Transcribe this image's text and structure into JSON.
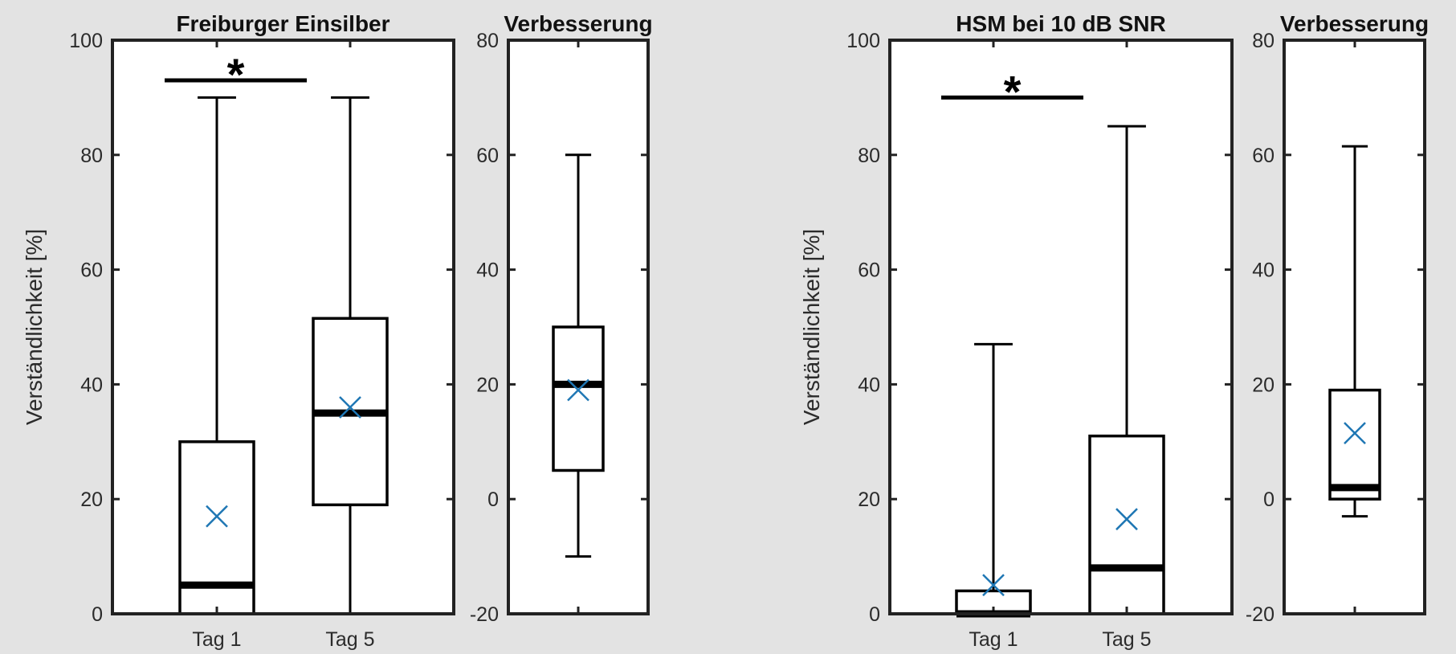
{
  "chart_data": [
    {
      "type": "box",
      "title": "Freiburger Einsilber",
      "ylabel": "Verständlichkeit [%]",
      "ylim": [
        0,
        100
      ],
      "yticks": [
        0,
        20,
        40,
        60,
        80,
        100
      ],
      "categories": [
        "Tag 1",
        "Tag 5"
      ],
      "boxes": [
        {
          "category": "Tag 1",
          "min": 0,
          "q1": 0,
          "median": 5,
          "q3": 30,
          "max": 90,
          "mean": 17
        },
        {
          "category": "Tag 5",
          "min": 0,
          "q1": 19,
          "median": 35,
          "q3": 51.5,
          "max": 90,
          "mean": 36
        }
      ],
      "significance": {
        "between": [
          "Tag 1",
          "Tag 5"
        ],
        "label": "*",
        "y": 93
      }
    },
    {
      "type": "box",
      "title": "Verbesserung",
      "ylim": [
        -20,
        80
      ],
      "yticks": [
        -20,
        0,
        20,
        40,
        60,
        80
      ],
      "categories": [
        ""
      ],
      "boxes": [
        {
          "category": "",
          "min": -10,
          "q1": 5,
          "median": 20,
          "q3": 30,
          "max": 60,
          "mean": 19
        }
      ]
    },
    {
      "type": "box",
      "title": "HSM bei 10 dB SNR",
      "ylabel": "Verständlichkeit [%]",
      "ylim": [
        0,
        100
      ],
      "yticks": [
        0,
        20,
        40,
        60,
        80,
        100
      ],
      "categories": [
        "Tag 1",
        "Tag 5"
      ],
      "boxes": [
        {
          "category": "Tag 1",
          "min": 0,
          "q1": 0,
          "median": 0,
          "q3": 4,
          "max": 47,
          "mean": 5
        },
        {
          "category": "Tag 5",
          "min": 0,
          "q1": 0,
          "median": 8,
          "q3": 31,
          "max": 85,
          "mean": 16.5
        }
      ],
      "significance": {
        "between": [
          "Tag 1",
          "Tag 5"
        ],
        "label": "*",
        "y": 90
      }
    },
    {
      "type": "box",
      "title": "Verbesserung",
      "ylim": [
        -20,
        80
      ],
      "yticks": [
        -20,
        0,
        20,
        40,
        60,
        80
      ],
      "categories": [
        ""
      ],
      "boxes": [
        {
          "category": "",
          "min": -3,
          "q1": 0,
          "median": 2,
          "q3": 19,
          "max": 61.5,
          "mean": 11.5
        }
      ]
    }
  ],
  "colors": {
    "background": "#e3e3e3",
    "axes_background": "#ffffff",
    "box_line": "#000000",
    "text": "#2b2b2b",
    "mean_marker": "#1f77b4"
  }
}
